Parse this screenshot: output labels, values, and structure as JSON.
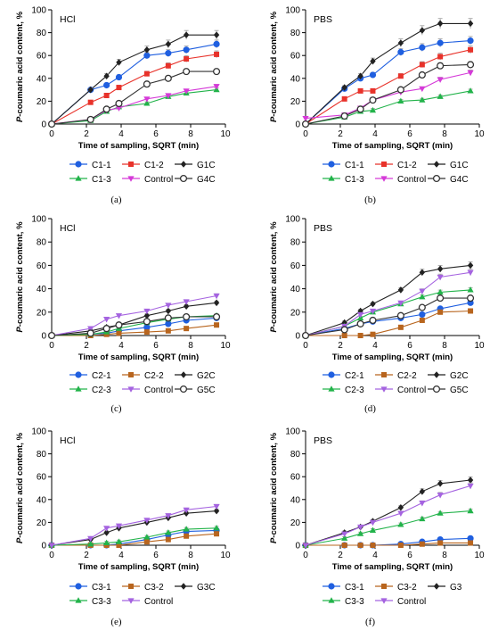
{
  "chart_data": [
    {
      "type": "line",
      "panel": "(a)",
      "inner_label": "HCl",
      "xlabel": "Time of sampling, SQRT (min)",
      "ylabel": "P-coumaric acid content, %",
      "xlim": [
        0,
        10
      ],
      "ylim": [
        0,
        100
      ],
      "xticks": [
        0,
        2,
        4,
        6,
        8,
        10
      ],
      "yticks": [
        0,
        20,
        40,
        60,
        80,
        100
      ],
      "x": [
        0,
        2.24,
        3.16,
        3.87,
        5.48,
        6.71,
        7.75,
        9.49
      ],
      "series": [
        {
          "name": "C1-1",
          "color": "#1f5fe0",
          "marker": "circle-filled",
          "values": [
            0,
            30,
            34,
            41,
            60,
            62,
            65,
            70
          ]
        },
        {
          "name": "C1-2",
          "color": "#e8322a",
          "marker": "square-filled",
          "values": [
            0,
            19,
            25,
            32,
            44,
            51,
            57,
            61
          ]
        },
        {
          "name": "G1C",
          "color": "#222222",
          "marker": "diamond-filled",
          "values": [
            0,
            30,
            42,
            54,
            65,
            70,
            78,
            78
          ]
        },
        {
          "name": "C1-3",
          "color": "#22b34a",
          "marker": "triangle-up",
          "values": [
            0,
            3,
            11,
            15,
            18,
            24,
            27,
            30
          ]
        },
        {
          "name": "Control",
          "color": "#d53ad8",
          "marker": "triangle-down",
          "values": [
            0,
            4,
            12,
            14,
            22,
            25,
            29,
            33
          ]
        },
        {
          "name": "G4C",
          "color": "#333333",
          "marker": "circle-open",
          "values": [
            0,
            4,
            13,
            18,
            35,
            40,
            46,
            46
          ]
        }
      ]
    },
    {
      "type": "line",
      "panel": "(b)",
      "inner_label": "PBS",
      "xlabel": "Time of sampling, SQRT (min)",
      "ylabel": "P-coumaric acid content, %",
      "xlim": [
        0,
        10
      ],
      "ylim": [
        0,
        100
      ],
      "xticks": [
        0,
        2,
        4,
        6,
        8,
        10
      ],
      "yticks": [
        0,
        20,
        40,
        60,
        80,
        100
      ],
      "x": [
        0,
        2.24,
        3.16,
        3.87,
        5.48,
        6.71,
        7.75,
        9.49
      ],
      "series": [
        {
          "name": "C1-1",
          "color": "#1f5fe0",
          "marker": "circle-filled",
          "values": [
            0,
            31,
            40,
            43,
            63,
            67,
            71,
            73
          ]
        },
        {
          "name": "C1-2",
          "color": "#e8322a",
          "marker": "square-filled",
          "values": [
            0,
            22,
            29,
            29,
            42,
            52,
            59,
            65
          ]
        },
        {
          "name": "G1C",
          "color": "#222222",
          "marker": "diamond-filled",
          "values": [
            0,
            32,
            42,
            55,
            71,
            82,
            88,
            88
          ]
        },
        {
          "name": "C1-3",
          "color": "#22b34a",
          "marker": "triangle-up",
          "values": [
            0,
            6,
            11,
            12,
            20,
            21,
            24,
            29
          ]
        },
        {
          "name": "Control",
          "color": "#d53ad8",
          "marker": "triangle-down",
          "values": [
            5,
            8,
            14,
            21,
            28,
            31,
            39,
            45
          ]
        },
        {
          "name": "G4C",
          "color": "#333333",
          "marker": "circle-open",
          "values": [
            0,
            7,
            13,
            21,
            30,
            43,
            51,
            52
          ]
        }
      ]
    },
    {
      "type": "line",
      "panel": "(c)",
      "inner_label": "HCl",
      "xlabel": "Time of sampling, SQRT (min)",
      "ylabel": "P-coumaric acid content, %",
      "xlim": [
        0,
        10
      ],
      "ylim": [
        0,
        100
      ],
      "xticks": [
        0,
        2,
        4,
        6,
        8,
        10
      ],
      "yticks": [
        0,
        20,
        40,
        60,
        80,
        100
      ],
      "x": [
        0,
        2.24,
        3.16,
        3.87,
        5.48,
        6.71,
        7.75,
        9.49
      ],
      "series": [
        {
          "name": "C2-1",
          "color": "#1f5fe0",
          "marker": "circle-filled",
          "values": [
            0,
            1,
            2,
            4,
            7,
            10,
            13,
            15
          ]
        },
        {
          "name": "C2-2",
          "color": "#b8651e",
          "marker": "square-filled",
          "values": [
            0,
            0,
            1,
            2,
            3,
            4,
            6,
            9
          ]
        },
        {
          "name": "G2C",
          "color": "#222222",
          "marker": "diamond-filled",
          "values": [
            0,
            4,
            7,
            9,
            17,
            21,
            25,
            28
          ]
        },
        {
          "name": "C2-3",
          "color": "#22b34a",
          "marker": "triangle-up",
          "values": [
            0,
            1,
            3,
            6,
            11,
            14,
            16,
            17
          ]
        },
        {
          "name": "Control",
          "color": "#a563e0",
          "marker": "triangle-down",
          "values": [
            0,
            6,
            14,
            17,
            21,
            26,
            29,
            34
          ]
        },
        {
          "name": "G5C",
          "color": "#333333",
          "marker": "circle-open",
          "values": [
            0,
            2,
            6,
            9,
            12,
            15,
            16,
            16
          ]
        }
      ]
    },
    {
      "type": "line",
      "panel": "(d)",
      "inner_label": "PBS",
      "xlabel": "Time of sampling, SQRT (min)",
      "ylabel": "P-coumaric acid content, %",
      "xlim": [
        0,
        10
      ],
      "ylim": [
        0,
        100
      ],
      "xticks": [
        0,
        2,
        4,
        6,
        8,
        10
      ],
      "yticks": [
        0,
        20,
        40,
        60,
        80,
        100
      ],
      "x": [
        0,
        2.24,
        3.16,
        3.87,
        5.48,
        6.71,
        7.75,
        9.49
      ],
      "series": [
        {
          "name": "C2-1",
          "color": "#1f5fe0",
          "marker": "circle-filled",
          "values": [
            0,
            6,
            10,
            12,
            15,
            18,
            23,
            28
          ]
        },
        {
          "name": "C2-2",
          "color": "#b8651e",
          "marker": "square-filled",
          "values": [
            0,
            0,
            0,
            1,
            7,
            13,
            20,
            21
          ]
        },
        {
          "name": "G2C",
          "color": "#222222",
          "marker": "diamond-filled",
          "values": [
            0,
            11,
            21,
            27,
            39,
            54,
            57,
            60
          ]
        },
        {
          "name": "C2-3",
          "color": "#22b34a",
          "marker": "triangle-up",
          "values": [
            0,
            8,
            15,
            20,
            27,
            33,
            37,
            39
          ]
        },
        {
          "name": "Control",
          "color": "#a563e0",
          "marker": "triangle-down",
          "values": [
            0,
            8,
            18,
            21,
            28,
            38,
            50,
            54
          ]
        },
        {
          "name": "G5C",
          "color": "#333333",
          "marker": "circle-open",
          "values": [
            0,
            5,
            10,
            13,
            17,
            24,
            32,
            32
          ]
        }
      ]
    },
    {
      "type": "line",
      "panel": "(e)",
      "inner_label": "HCl",
      "xlabel": "Time of sampling, SQRT (min)",
      "ylabel": "P-coumaric acid content, %",
      "xlim": [
        0,
        10
      ],
      "ylim": [
        0,
        100
      ],
      "xticks": [
        0,
        2,
        4,
        6,
        8,
        10
      ],
      "yticks": [
        0,
        20,
        40,
        60,
        80,
        100
      ],
      "x": [
        0,
        2.24,
        3.16,
        3.87,
        5.48,
        6.71,
        7.75,
        9.49
      ],
      "series": [
        {
          "name": "C3-1",
          "color": "#1f5fe0",
          "marker": "circle-filled",
          "values": [
            0,
            0,
            0,
            1,
            5,
            9,
            12,
            13
          ]
        },
        {
          "name": "C3-2",
          "color": "#b8651e",
          "marker": "square-filled",
          "values": [
            0,
            0,
            0,
            0,
            3,
            5,
            8,
            10
          ]
        },
        {
          "name": "G3C",
          "color": "#222222",
          "marker": "diamond-filled",
          "values": [
            0,
            5,
            11,
            15,
            20,
            24,
            28,
            30
          ]
        },
        {
          "name": "C3-3",
          "color": "#22b34a",
          "marker": "triangle-up",
          "values": [
            0,
            1,
            2,
            3,
            7,
            11,
            14,
            15
          ]
        },
        {
          "name": "Control",
          "color": "#a563e0",
          "marker": "triangle-down",
          "values": [
            0,
            6,
            15,
            17,
            22,
            26,
            31,
            34
          ]
        }
      ]
    },
    {
      "type": "line",
      "panel": "(f)",
      "inner_label": "PBS",
      "xlabel": "Time of sampling, SQRT (min)",
      "ylabel": "P-coumaric acid content, %",
      "xlim": [
        0,
        10
      ],
      "ylim": [
        0,
        100
      ],
      "xticks": [
        0,
        2,
        4,
        6,
        8,
        10
      ],
      "yticks": [
        0,
        20,
        40,
        60,
        80,
        100
      ],
      "x": [
        0,
        2.24,
        3.16,
        3.87,
        5.48,
        6.71,
        7.75,
        9.49
      ],
      "series": [
        {
          "name": "C3-1",
          "color": "#1f5fe0",
          "marker": "circle-filled",
          "values": [
            0,
            0,
            0,
            0,
            1,
            3,
            5,
            6
          ]
        },
        {
          "name": "C3-2",
          "color": "#b8651e",
          "marker": "square-filled",
          "values": [
            0,
            0,
            0,
            0,
            0,
            1,
            2,
            2
          ]
        },
        {
          "name": "G3",
          "color": "#222222",
          "marker": "diamond-filled",
          "values": [
            0,
            11,
            16,
            21,
            33,
            47,
            54,
            57
          ]
        },
        {
          "name": "C3-3",
          "color": "#22b34a",
          "marker": "triangle-up",
          "values": [
            0,
            6,
            10,
            13,
            18,
            23,
            28,
            30
          ]
        },
        {
          "name": "Control",
          "color": "#a563e0",
          "marker": "triangle-down",
          "values": [
            0,
            10,
            16,
            20,
            28,
            37,
            44,
            52
          ]
        }
      ]
    }
  ]
}
